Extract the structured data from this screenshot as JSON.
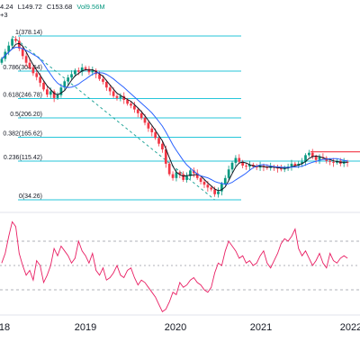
{
  "header": {
    "ohlc_segments": [
      "4.24",
      "L149.72",
      "C153.68",
      "Vol9.56M"
    ],
    "sub_label": "+3"
  },
  "colors": {
    "up": "#089981",
    "down": "#f23645",
    "fib": "#26c6da",
    "ma_fast": "#131722",
    "ma_slow": "#2962ff",
    "rsi": "#e91e63",
    "rsi_band": "#9598a1",
    "resistance": "#f23645",
    "trendline": "#26a69a",
    "grid": "#e0e3eb",
    "axis_text": "#131722"
  },
  "chart_data": {
    "type": "candlestick",
    "x_axis": {
      "ticks": [
        "18",
        "2019",
        "2020",
        "2021",
        "2022"
      ]
    },
    "y_range": [
      34.26,
      378.14
    ],
    "fib_levels": [
      {
        "ratio": "1",
        "price": 378.14,
        "label": "1(378.14)"
      },
      {
        "ratio": "0.786",
        "price": 304.54,
        "label": "0.786(304.54)"
      },
      {
        "ratio": "0.618",
        "price": 246.78,
        "label": "0.618(246.78)"
      },
      {
        "ratio": "0.5",
        "price": 206.2,
        "label": "0.5(206.20)"
      },
      {
        "ratio": "0.382",
        "price": 165.62,
        "label": "0.382(165.62)"
      },
      {
        "ratio": "0.236",
        "price": 115.42,
        "label": "0.236(115.42)"
      },
      {
        "ratio": "0",
        "price": 34.26,
        "label": "0(34.26)"
      }
    ],
    "price_closes": [
      330,
      345,
      358,
      372,
      368,
      352,
      336,
      322,
      312,
      300,
      292,
      280,
      266,
      255,
      262,
      248,
      254,
      270,
      283,
      291,
      298,
      306,
      303,
      312,
      309,
      302,
      306,
      298,
      288,
      282,
      270,
      262,
      252,
      248,
      252,
      244,
      236,
      232,
      224,
      216,
      206,
      196,
      184,
      176,
      164,
      152,
      140,
      110,
      88,
      80,
      92,
      88,
      76,
      84,
      96,
      90,
      80,
      72,
      66,
      60,
      56,
      46,
      52,
      68,
      80,
      98,
      112,
      122,
      114,
      106,
      104,
      108,
      104,
      102,
      106,
      103,
      101,
      104,
      102,
      100,
      98,
      102,
      104,
      110,
      106,
      110,
      114,
      128,
      133,
      125,
      118,
      124,
      122,
      116,
      114,
      112,
      116,
      110,
      114,
      112
    ],
    "moving_averages": [
      {
        "period": 20,
        "type": "fast"
      },
      {
        "period": 50,
        "type": "slow"
      }
    ],
    "resistance_level": 135,
    "rsi": {
      "range": [
        0,
        100
      ],
      "bands": [
        70,
        50,
        30
      ],
      "values": [
        52,
        60,
        74,
        86,
        82,
        60,
        50,
        42,
        46,
        38,
        54,
        50,
        36,
        42,
        50,
        64,
        58,
        66,
        62,
        58,
        52,
        56,
        70,
        62,
        58,
        52,
        60,
        46,
        42,
        48,
        38,
        40,
        44,
        50,
        42,
        40,
        46,
        48,
        40,
        34,
        38,
        36,
        32,
        28,
        24,
        18,
        12,
        14,
        20,
        28,
        26,
        36,
        32,
        34,
        38,
        40,
        36,
        34,
        30,
        28,
        32,
        44,
        52,
        50,
        62,
        70,
        66,
        62,
        56,
        58,
        52,
        54,
        50,
        52,
        58,
        62,
        52,
        48,
        54,
        60,
        68,
        72,
        70,
        74,
        80,
        64,
        58,
        62,
        56,
        50,
        54,
        60,
        52,
        48,
        60,
        54,
        52,
        56,
        58,
        56
      ]
    }
  }
}
